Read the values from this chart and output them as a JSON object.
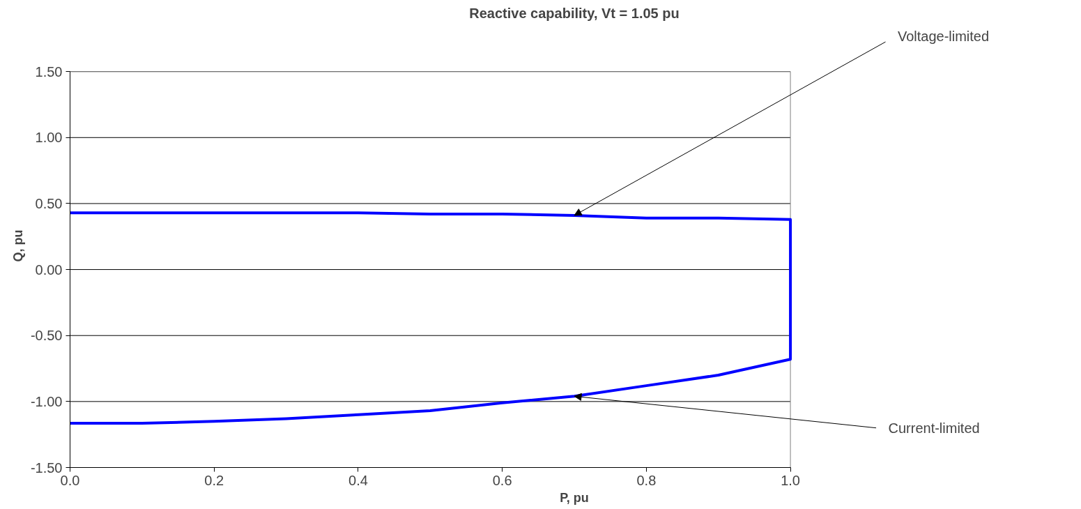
{
  "chart_data": {
    "type": "line",
    "title": "Reactive capability, Vt = 1.05 pu",
    "xlabel": "P, pu",
    "ylabel": "Q, pu",
    "series": [
      {
        "color": "#0000ff",
        "x": [
          0,
          0.1,
          0.2,
          0.3,
          0.4,
          0.5,
          0.6,
          0.7,
          0.8,
          0.9,
          1.0,
          1.0,
          0.9,
          0.8,
          0.7,
          0.6,
          0.5,
          0.4,
          0.3,
          0.2,
          0.1,
          0
        ],
        "values": [
          0.43,
          0.43,
          0.43,
          0.43,
          0.43,
          0.42,
          0.42,
          0.41,
          0.39,
          0.39,
          0.38,
          -0.68,
          -0.8,
          -0.88,
          -0.96,
          -1.01,
          -1.07,
          -1.1,
          -1.13,
          -1.15,
          -1.165,
          -1.165
        ]
      }
    ],
    "xlim": [
      0,
      1
    ],
    "ylim": [
      -1.5,
      1.5
    ],
    "xticks": [
      {
        "value": 0,
        "label": "0.0"
      },
      {
        "value": 0.2,
        "label": "0.2"
      },
      {
        "value": 0.4,
        "label": "0.4"
      },
      {
        "value": 0.6,
        "label": "0.6"
      },
      {
        "value": 0.8,
        "label": "0.8"
      },
      {
        "value": 1.0,
        "label": "1.0"
      }
    ],
    "yticks": [
      {
        "value": -1.5,
        "label": "-1.50"
      },
      {
        "value": -1.0,
        "label": "-1.00"
      },
      {
        "value": -0.5,
        "label": "-0.50"
      },
      {
        "value": 0,
        "label": "0.00"
      },
      {
        "value": 0.5,
        "label": "0.50"
      },
      {
        "value": 1.0,
        "label": "1.00"
      },
      {
        "value": 1.5,
        "label": "1.50"
      }
    ],
    "grid": "y",
    "marker": "none",
    "line_style": "solid",
    "annotations": [
      {
        "text": "Voltage-limited",
        "x": 0.7,
        "y": 0.41
      },
      {
        "text": "Current-limited",
        "x": 0.7,
        "y": -0.96
      }
    ]
  }
}
